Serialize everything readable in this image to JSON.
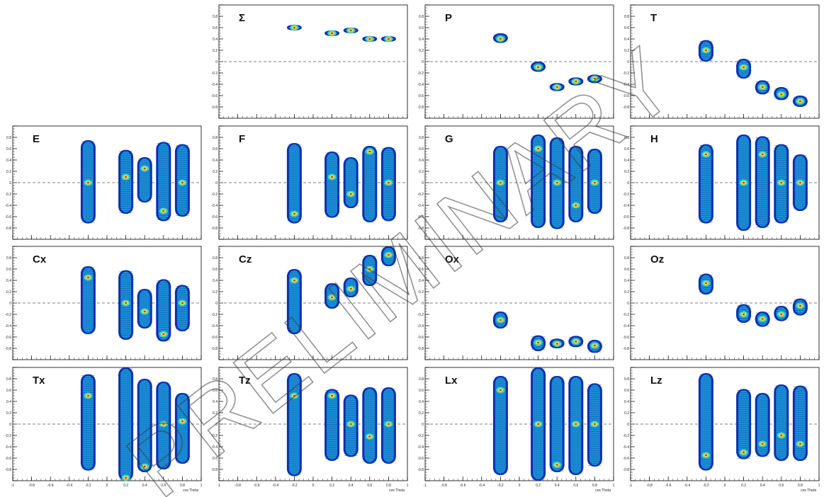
{
  "figure": {
    "watermark": "PRELIMINARY",
    "x_axis_label": "cos Theta",
    "y_ticks": [
      "-1",
      "-0.8",
      "-0.6",
      "-0.4",
      "-0.2",
      "0",
      "0.2",
      "0.4",
      "0.6",
      "0.8",
      "1"
    ],
    "x_ticks": [
      "-1",
      "-0.8",
      "-0.6",
      "-0.4",
      "-0.2",
      "0",
      "0.2",
      "0.4",
      "0.6",
      "0.8",
      "1"
    ],
    "colors": {
      "outer": "#0a2fb0",
      "mid": "#1fa0d8",
      "inner": "#47e0b0",
      "hot": "#f5e042",
      "core": "#e8261e",
      "ref": "#555555"
    }
  },
  "chart_data": [
    {
      "name": "Σ",
      "type": "heatmap",
      "ylim": [
        -1,
        1
      ],
      "xlim": [
        -1,
        1
      ],
      "clusters": [
        {
          "x": -0.2,
          "y": 0.6,
          "ylo": 0.55,
          "yhi": 0.65
        },
        {
          "x": 0.2,
          "y": 0.5,
          "ylo": 0.45,
          "yhi": 0.55
        },
        {
          "x": 0.4,
          "y": 0.55,
          "ylo": 0.5,
          "yhi": 0.6
        },
        {
          "x": 0.6,
          "y": 0.4,
          "ylo": 0.35,
          "yhi": 0.45
        },
        {
          "x": 0.8,
          "y": 0.4,
          "ylo": 0.35,
          "yhi": 0.45
        }
      ]
    },
    {
      "name": "P",
      "type": "heatmap",
      "ylim": [
        -1,
        1
      ],
      "xlim": [
        -1,
        1
      ],
      "clusters": [
        {
          "x": -0.2,
          "y": 0.4,
          "ylo": 0.33,
          "yhi": 0.5
        },
        {
          "x": 0.2,
          "y": -0.1,
          "ylo": -0.18,
          "yhi": 0.0
        },
        {
          "x": 0.4,
          "y": -0.45,
          "ylo": -0.52,
          "yhi": -0.38
        },
        {
          "x": 0.6,
          "y": -0.35,
          "ylo": -0.42,
          "yhi": -0.28
        },
        {
          "x": 0.8,
          "y": -0.3,
          "ylo": -0.38,
          "yhi": -0.23
        }
      ]
    },
    {
      "name": "T",
      "type": "heatmap",
      "ylim": [
        -1,
        1
      ],
      "xlim": [
        -1,
        1
      ],
      "clusters": [
        {
          "x": -0.2,
          "y": 0.2,
          "ylo": 0.0,
          "yhi": 0.38
        },
        {
          "x": 0.2,
          "y": -0.1,
          "ylo": -0.3,
          "yhi": 0.05
        },
        {
          "x": 0.4,
          "y": -0.45,
          "ylo": -0.58,
          "yhi": -0.33
        },
        {
          "x": 0.6,
          "y": -0.58,
          "ylo": -0.68,
          "yhi": -0.45
        },
        {
          "x": 0.8,
          "y": -0.7,
          "ylo": -0.8,
          "yhi": -0.6
        }
      ]
    },
    {
      "name": "E",
      "type": "heatmap",
      "ylim": [
        -1,
        1
      ],
      "xlim": [
        -1,
        1
      ],
      "clusters": [
        {
          "x": -0.2,
          "y": 0.0,
          "ylo": -0.72,
          "yhi": 0.75
        },
        {
          "x": 0.2,
          "y": 0.1,
          "ylo": -0.55,
          "yhi": 0.58
        },
        {
          "x": 0.4,
          "y": 0.25,
          "ylo": -0.35,
          "yhi": 0.45
        },
        {
          "x": 0.6,
          "y": -0.5,
          "ylo": -0.68,
          "yhi": 0.72
        },
        {
          "x": 0.8,
          "y": 0.0,
          "ylo": -0.6,
          "yhi": 0.68
        }
      ]
    },
    {
      "name": "F",
      "type": "heatmap",
      "ylim": [
        -1,
        1
      ],
      "xlim": [
        -1,
        1
      ],
      "clusters": [
        {
          "x": -0.2,
          "y": -0.55,
          "ylo": -0.72,
          "yhi": 0.7
        },
        {
          "x": 0.2,
          "y": 0.1,
          "ylo": -0.62,
          "yhi": 0.55
        },
        {
          "x": 0.4,
          "y": -0.2,
          "ylo": -0.45,
          "yhi": 0.45
        },
        {
          "x": 0.6,
          "y": 0.55,
          "ylo": -0.7,
          "yhi": 0.65
        },
        {
          "x": 0.8,
          "y": 0.0,
          "ylo": -0.68,
          "yhi": 0.63
        }
      ]
    },
    {
      "name": "G",
      "type": "heatmap",
      "ylim": [
        -1,
        1
      ],
      "xlim": [
        -1,
        1
      ],
      "clusters": [
        {
          "x": -0.2,
          "y": 0.0,
          "ylo": -0.7,
          "yhi": 0.65
        },
        {
          "x": 0.2,
          "y": 0.6,
          "ylo": -0.8,
          "yhi": 0.85
        },
        {
          "x": 0.4,
          "y": 0.0,
          "ylo": -0.82,
          "yhi": 0.8
        },
        {
          "x": 0.6,
          "y": -0.4,
          "ylo": -0.7,
          "yhi": 0.65
        },
        {
          "x": 0.8,
          "y": 0.0,
          "ylo": -0.55,
          "yhi": 0.6
        }
      ]
    },
    {
      "name": "H",
      "type": "heatmap",
      "ylim": [
        -1,
        1
      ],
      "xlim": [
        -1,
        1
      ],
      "clusters": [
        {
          "x": -0.2,
          "y": 0.5,
          "ylo": -0.72,
          "yhi": 0.68
        },
        {
          "x": 0.2,
          "y": 0.0,
          "ylo": -0.85,
          "yhi": 0.85
        },
        {
          "x": 0.4,
          "y": 0.5,
          "ylo": -0.8,
          "yhi": 0.82
        },
        {
          "x": 0.6,
          "y": 0.0,
          "ylo": -0.72,
          "yhi": 0.68
        },
        {
          "x": 0.8,
          "y": 0.0,
          "ylo": -0.5,
          "yhi": 0.5
        }
      ]
    },
    {
      "name": "Cx",
      "type": "heatmap",
      "ylim": [
        -1,
        1
      ],
      "xlim": [
        -1,
        1
      ],
      "clusters": [
        {
          "x": -0.2,
          "y": 0.45,
          "ylo": -0.55,
          "yhi": 0.65
        },
        {
          "x": 0.2,
          "y": 0.0,
          "ylo": -0.65,
          "yhi": 0.58
        },
        {
          "x": 0.4,
          "y": -0.15,
          "ylo": -0.45,
          "yhi": 0.25
        },
        {
          "x": 0.6,
          "y": -0.55,
          "ylo": -0.68,
          "yhi": 0.42
        },
        {
          "x": 0.8,
          "y": 0.0,
          "ylo": -0.5,
          "yhi": 0.32
        }
      ]
    },
    {
      "name": "Cz",
      "type": "heatmap",
      "ylim": [
        -1,
        1
      ],
      "xlim": [
        -1,
        1
      ],
      "clusters": [
        {
          "x": -0.2,
          "y": 0.4,
          "ylo": -0.55,
          "yhi": 0.6
        },
        {
          "x": 0.2,
          "y": 0.1,
          "ylo": -0.1,
          "yhi": 0.35
        },
        {
          "x": 0.4,
          "y": 0.25,
          "ylo": 0.1,
          "yhi": 0.45
        },
        {
          "x": 0.6,
          "y": 0.6,
          "ylo": 0.3,
          "yhi": 0.85
        },
        {
          "x": 0.8,
          "y": 0.85,
          "ylo": 0.65,
          "yhi": 1.0
        }
      ]
    },
    {
      "name": "Ox",
      "type": "heatmap",
      "ylim": [
        -1,
        1
      ],
      "xlim": [
        -1,
        1
      ],
      "clusters": [
        {
          "x": -0.2,
          "y": -0.3,
          "ylo": -0.45,
          "yhi": -0.15
        },
        {
          "x": 0.2,
          "y": -0.7,
          "ylo": -0.85,
          "yhi": -0.57
        },
        {
          "x": 0.4,
          "y": -0.72,
          "ylo": -0.8,
          "yhi": -0.63
        },
        {
          "x": 0.6,
          "y": -0.68,
          "ylo": -0.78,
          "yhi": -0.58
        },
        {
          "x": 0.8,
          "y": -0.75,
          "ylo": -0.88,
          "yhi": -0.65
        }
      ]
    },
    {
      "name": "Oz",
      "type": "heatmap",
      "ylim": [
        -1,
        1
      ],
      "xlim": [
        -1,
        1
      ],
      "clusters": [
        {
          "x": -0.2,
          "y": 0.35,
          "ylo": 0.15,
          "yhi": 0.52
        },
        {
          "x": 0.2,
          "y": -0.2,
          "ylo": -0.35,
          "yhi": -0.02
        },
        {
          "x": 0.4,
          "y": -0.28,
          "ylo": -0.42,
          "yhi": -0.15
        },
        {
          "x": 0.6,
          "y": -0.2,
          "ylo": -0.32,
          "yhi": -0.05
        },
        {
          "x": 0.8,
          "y": -0.05,
          "ylo": -0.22,
          "yhi": 0.08
        }
      ]
    },
    {
      "name": "Tx",
      "type": "heatmap",
      "ylim": [
        -1,
        1
      ],
      "xlim": [
        -1,
        1
      ],
      "clusters": [
        {
          "x": -0.2,
          "y": 0.5,
          "ylo": -0.82,
          "yhi": 0.88
        },
        {
          "x": 0.2,
          "y": -0.95,
          "ylo": -1.0,
          "yhi": 1.0
        },
        {
          "x": 0.4,
          "y": -0.75,
          "ylo": -0.85,
          "yhi": 0.8
        },
        {
          "x": 0.6,
          "y": 0.0,
          "ylo": -0.8,
          "yhi": 0.75
        },
        {
          "x": 0.8,
          "y": 0.05,
          "ylo": -0.7,
          "yhi": 0.55
        }
      ]
    },
    {
      "name": "Tz",
      "type": "heatmap",
      "ylim": [
        -1,
        1
      ],
      "xlim": [
        -1,
        1
      ],
      "clusters": [
        {
          "x": -0.2,
          "y": 0.5,
          "ylo": -0.92,
          "yhi": 0.9
        },
        {
          "x": 0.2,
          "y": 0.5,
          "ylo": -0.65,
          "yhi": 0.62
        },
        {
          "x": 0.4,
          "y": 0.0,
          "ylo": -0.58,
          "yhi": 0.52
        },
        {
          "x": 0.6,
          "y": -0.22,
          "ylo": -0.7,
          "yhi": 0.65
        },
        {
          "x": 0.8,
          "y": 0.0,
          "ylo": -0.7,
          "yhi": 0.65
        }
      ]
    },
    {
      "name": "Lx",
      "type": "heatmap",
      "ylim": [
        -1,
        1
      ],
      "xlim": [
        -1,
        1
      ],
      "clusters": [
        {
          "x": -0.2,
          "y": 0.6,
          "ylo": -0.9,
          "yhi": 0.85
        },
        {
          "x": 0.2,
          "y": 0.0,
          "ylo": -1.0,
          "yhi": 1.0
        },
        {
          "x": 0.4,
          "y": -0.72,
          "ylo": -0.85,
          "yhi": 0.85
        },
        {
          "x": 0.6,
          "y": 0.0,
          "ylo": -0.9,
          "yhi": 0.85
        },
        {
          "x": 0.8,
          "y": 0.0,
          "ylo": -0.75,
          "yhi": 0.72
        }
      ]
    },
    {
      "name": "Lz",
      "type": "heatmap",
      "ylim": [
        -1,
        1
      ],
      "xlim": [
        -1,
        1
      ],
      "clusters": [
        {
          "x": -0.2,
          "y": -0.55,
          "ylo": -0.82,
          "yhi": 0.9
        },
        {
          "x": 0.2,
          "y": -0.5,
          "ylo": -0.62,
          "yhi": 0.62
        },
        {
          "x": 0.4,
          "y": -0.35,
          "ylo": -0.58,
          "yhi": 0.55
        },
        {
          "x": 0.6,
          "y": -0.2,
          "ylo": -0.65,
          "yhi": 0.7
        },
        {
          "x": 0.8,
          "y": -0.35,
          "ylo": -0.65,
          "yhi": 0.68
        }
      ]
    }
  ]
}
